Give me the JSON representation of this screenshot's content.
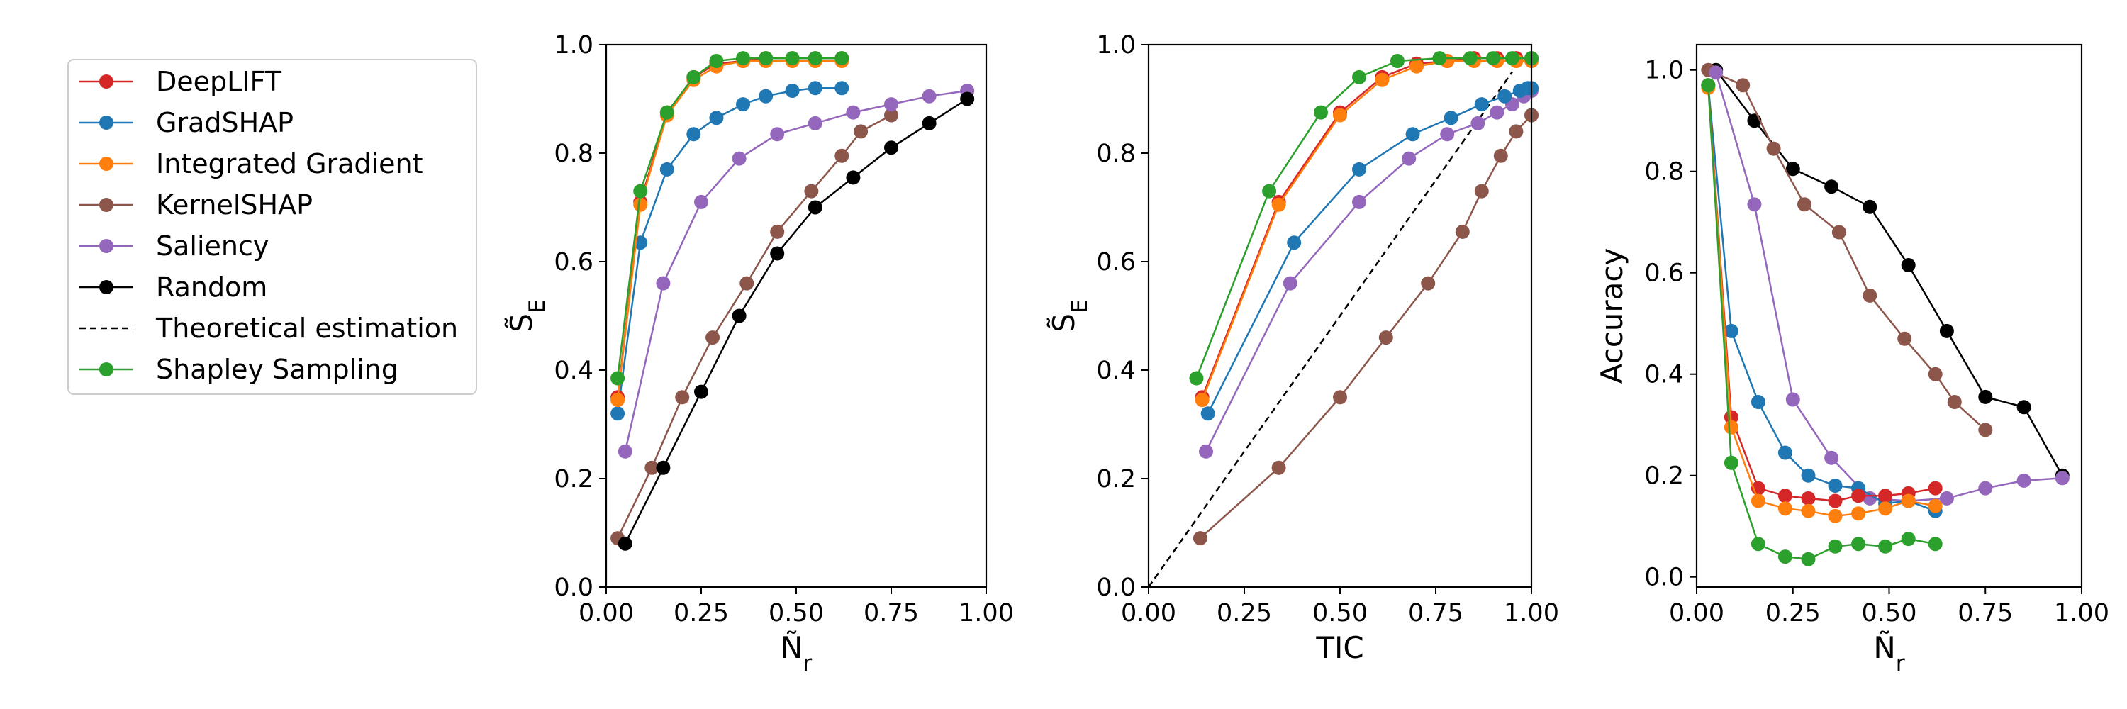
{
  "chart_data": {
    "legend": [
      {
        "key": "deeplift",
        "name": "DeepLIFT",
        "color": "#d62728",
        "style": "line-marker"
      },
      {
        "key": "gradshap",
        "name": "GradSHAP",
        "color": "#1f77b4",
        "style": "line-marker"
      },
      {
        "key": "ig",
        "name": "Integrated Gradient",
        "color": "#ff7f0e",
        "style": "line-marker"
      },
      {
        "key": "kernelshap",
        "name": "KernelSHAP",
        "color": "#8c564b",
        "style": "line-marker"
      },
      {
        "key": "saliency",
        "name": "Saliency",
        "color": "#9467bd",
        "style": "line-marker"
      },
      {
        "key": "random",
        "name": "Random",
        "color": "#000000",
        "style": "line-marker"
      },
      {
        "key": "theory",
        "name": "Theoretical estimation",
        "color": "#000000",
        "style": "dashed"
      },
      {
        "key": "shapley",
        "name": "Shapley Sampling",
        "color": "#2ca02c",
        "style": "line-marker"
      }
    ],
    "charts": [
      {
        "type": "line",
        "xlabel": "Ñ_r",
        "ylabel": "S̃_E",
        "xlim": [
          0,
          1
        ],
        "ylim": [
          0,
          1
        ],
        "xticks": [
          "0.00",
          "0.25",
          "0.50",
          "0.75",
          "1.00"
        ],
        "yticks": [
          "0.0",
          "0.2",
          "0.4",
          "0.6",
          "0.8",
          "1.0"
        ],
        "series": [
          {
            "key": "kernelshap",
            "x": [
              0.03,
              0.12,
              0.2,
              0.28,
              0.37,
              0.45,
              0.54,
              0.62,
              0.67,
              0.75
            ],
            "y": [
              0.09,
              0.22,
              0.35,
              0.46,
              0.56,
              0.655,
              0.73,
              0.795,
              0.84,
              0.87
            ]
          },
          {
            "key": "saliency",
            "x": [
              0.05,
              0.15,
              0.25,
              0.35,
              0.45,
              0.55,
              0.65,
              0.75,
              0.85,
              0.95
            ],
            "y": [
              0.25,
              0.56,
              0.71,
              0.79,
              0.835,
              0.855,
              0.875,
              0.89,
              0.905,
              0.915
            ]
          },
          {
            "key": "random",
            "x": [
              0.05,
              0.15,
              0.25,
              0.35,
              0.45,
              0.55,
              0.65,
              0.75,
              0.85,
              0.95
            ],
            "y": [
              0.08,
              0.22,
              0.36,
              0.5,
              0.615,
              0.7,
              0.755,
              0.81,
              0.855,
              0.9
            ]
          },
          {
            "key": "gradshap",
            "x": [
              0.03,
              0.09,
              0.16,
              0.23,
              0.29,
              0.36,
              0.42,
              0.49,
              0.55,
              0.62
            ],
            "y": [
              0.32,
              0.635,
              0.77,
              0.835,
              0.865,
              0.89,
              0.905,
              0.915,
              0.92,
              0.92
            ]
          },
          {
            "key": "deeplift",
            "x": [
              0.03,
              0.09,
              0.16,
              0.23,
              0.29,
              0.36,
              0.42,
              0.49,
              0.55,
              0.62
            ],
            "y": [
              0.35,
              0.71,
              0.875,
              0.94,
              0.965,
              0.97,
              0.975,
              0.975,
              0.975,
              0.975
            ]
          },
          {
            "key": "ig",
            "x": [
              0.03,
              0.09,
              0.16,
              0.23,
              0.29,
              0.36,
              0.42,
              0.49,
              0.55,
              0.62
            ],
            "y": [
              0.345,
              0.705,
              0.87,
              0.935,
              0.96,
              0.97,
              0.97,
              0.97,
              0.97,
              0.97
            ]
          },
          {
            "key": "shapley",
            "x": [
              0.03,
              0.09,
              0.16,
              0.23,
              0.29,
              0.36,
              0.42,
              0.49,
              0.55,
              0.62
            ],
            "y": [
              0.385,
              0.73,
              0.875,
              0.94,
              0.97,
              0.975,
              0.975,
              0.975,
              0.975,
              0.975
            ]
          }
        ]
      },
      {
        "type": "line",
        "xlabel": "TIC",
        "ylabel": "S̃_E",
        "xlim": [
          0,
          1
        ],
        "ylim": [
          0,
          1
        ],
        "xticks": [
          "0.00",
          "0.25",
          "0.50",
          "0.75",
          "1.00"
        ],
        "yticks": [
          "0.0",
          "0.2",
          "0.4",
          "0.6",
          "0.8",
          "1.0"
        ],
        "series": [
          {
            "key": "theory",
            "x": [
              0,
              0.95
            ],
            "y": [
              0,
              0.95
            ]
          },
          {
            "key": "kernelshap",
            "x": [
              0.135,
              0.34,
              0.5,
              0.62,
              0.73,
              0.82,
              0.87,
              0.92,
              0.96,
              1.0
            ],
            "y": [
              0.09,
              0.22,
              0.35,
              0.46,
              0.56,
              0.655,
              0.73,
              0.795,
              0.84,
              0.87
            ]
          },
          {
            "key": "saliency",
            "x": [
              0.15,
              0.37,
              0.55,
              0.68,
              0.78,
              0.86,
              0.91,
              0.95,
              0.98,
              1.0
            ],
            "y": [
              0.25,
              0.56,
              0.71,
              0.79,
              0.835,
              0.855,
              0.875,
              0.89,
              0.905,
              0.915
            ]
          },
          {
            "key": "gradshap",
            "x": [
              0.155,
              0.38,
              0.55,
              0.69,
              0.79,
              0.87,
              0.93,
              0.97,
              0.99,
              1.0
            ],
            "y": [
              0.32,
              0.635,
              0.77,
              0.835,
              0.865,
              0.89,
              0.905,
              0.915,
              0.92,
              0.92
            ]
          },
          {
            "key": "deeplift",
            "x": [
              0.14,
              0.34,
              0.5,
              0.61,
              0.7,
              0.78,
              0.85,
              0.91,
              0.96,
              1.0
            ],
            "y": [
              0.35,
              0.71,
              0.875,
              0.94,
              0.965,
              0.97,
              0.975,
              0.975,
              0.975,
              0.975
            ]
          },
          {
            "key": "ig",
            "x": [
              0.14,
              0.34,
              0.5,
              0.61,
              0.7,
              0.78,
              0.85,
              0.91,
              0.96,
              1.0
            ],
            "y": [
              0.345,
              0.705,
              0.87,
              0.935,
              0.96,
              0.97,
              0.97,
              0.97,
              0.97,
              0.97
            ]
          },
          {
            "key": "shapley",
            "x": [
              0.125,
              0.315,
              0.45,
              0.55,
              0.65,
              0.76,
              0.84,
              0.9,
              0.95,
              1.0
            ],
            "y": [
              0.385,
              0.73,
              0.875,
              0.94,
              0.97,
              0.975,
              0.975,
              0.975,
              0.975,
              0.975
            ]
          }
        ]
      },
      {
        "type": "line",
        "xlabel": "Ñ_r",
        "ylabel": "Accuracy",
        "xlim": [
          0,
          1
        ],
        "ylim": [
          -0.02,
          1.05
        ],
        "xticks": [
          "0.00",
          "0.25",
          "0.50",
          "0.75",
          "1.00"
        ],
        "yticks": [
          "0.0",
          "0.2",
          "0.4",
          "0.6",
          "0.8",
          "1.0"
        ],
        "series": [
          {
            "key": "random",
            "x": [
              0.05,
              0.15,
              0.25,
              0.35,
              0.45,
              0.55,
              0.65,
              0.75,
              0.85,
              0.95
            ],
            "y": [
              1.0,
              0.9,
              0.805,
              0.77,
              0.73,
              0.615,
              0.485,
              0.355,
              0.335,
              0.2
            ]
          },
          {
            "key": "kernelshap",
            "x": [
              0.03,
              0.12,
              0.2,
              0.28,
              0.37,
              0.45,
              0.54,
              0.62,
              0.67,
              0.75
            ],
            "y": [
              1.0,
              0.97,
              0.845,
              0.735,
              0.68,
              0.555,
              0.47,
              0.4,
              0.345,
              0.29
            ]
          },
          {
            "key": "saliency",
            "x": [
              0.05,
              0.15,
              0.25,
              0.35,
              0.45,
              0.55,
              0.65,
              0.75,
              0.85,
              0.95
            ],
            "y": [
              0.995,
              0.735,
              0.35,
              0.235,
              0.155,
              0.15,
              0.155,
              0.175,
              0.19,
              0.195
            ]
          },
          {
            "key": "gradshap",
            "x": [
              0.03,
              0.09,
              0.16,
              0.23,
              0.29,
              0.36,
              0.42,
              0.49,
              0.55,
              0.62
            ],
            "y": [
              0.97,
              0.485,
              0.345,
              0.245,
              0.2,
              0.18,
              0.175,
              0.145,
              0.15,
              0.13
            ]
          },
          {
            "key": "deeplift",
            "x": [
              0.03,
              0.09,
              0.16,
              0.23,
              0.29,
              0.36,
              0.42,
              0.49,
              0.55,
              0.62
            ],
            "y": [
              0.97,
              0.315,
              0.175,
              0.16,
              0.155,
              0.15,
              0.16,
              0.16,
              0.165,
              0.175
            ]
          },
          {
            "key": "ig",
            "x": [
              0.03,
              0.09,
              0.16,
              0.23,
              0.29,
              0.36,
              0.42,
              0.49,
              0.55,
              0.62
            ],
            "y": [
              0.965,
              0.295,
              0.15,
              0.135,
              0.13,
              0.12,
              0.125,
              0.135,
              0.15,
              0.14
            ]
          },
          {
            "key": "shapley",
            "x": [
              0.03,
              0.09,
              0.16,
              0.23,
              0.29,
              0.36,
              0.42,
              0.49,
              0.55,
              0.62
            ],
            "y": [
              0.97,
              0.225,
              0.065,
              0.04,
              0.035,
              0.06,
              0.065,
              0.06,
              0.075,
              0.065
            ]
          }
        ]
      }
    ]
  }
}
